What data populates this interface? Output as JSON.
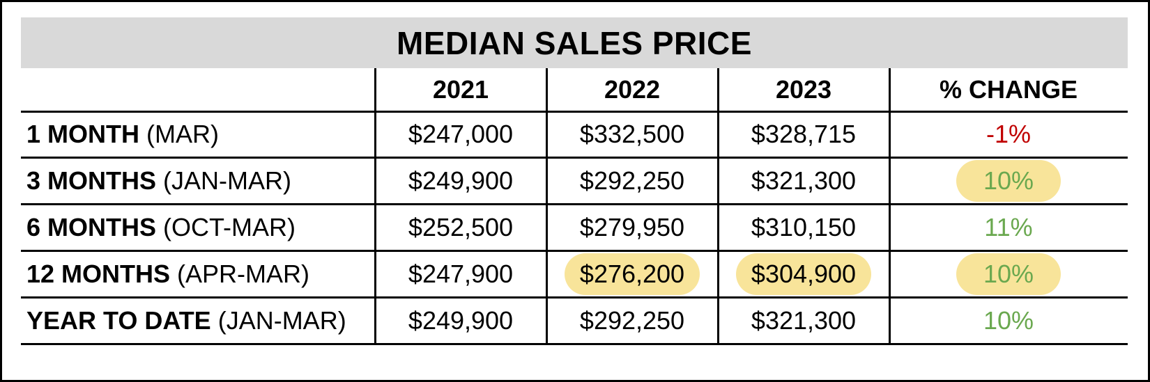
{
  "chart_data": {
    "type": "table",
    "title": "MEDIAN SALES PRICE",
    "columns": [
      "2021",
      "2022",
      "2023",
      "% CHANGE"
    ],
    "rows": [
      {
        "label_bold": "1 MONTH",
        "label_rest": " (MAR)",
        "values": [
          "$247,000",
          "$332,500",
          "$328,715"
        ],
        "change": "-1%"
      },
      {
        "label_bold": "3 MONTHS",
        "label_rest": " (JAN-MAR)",
        "values": [
          "$249,900",
          "$292,250",
          "$321,300"
        ],
        "change": "10%"
      },
      {
        "label_bold": "6 MONTHS",
        "label_rest": " (OCT-MAR)",
        "values": [
          "$252,500",
          "$279,950",
          "$310,150"
        ],
        "change": "11%"
      },
      {
        "label_bold": "12 MONTHS",
        "label_rest": " (APR-MAR)",
        "values": [
          "$247,900",
          "$276,200",
          "$304,900"
        ],
        "change": "10%"
      },
      {
        "label_bold": "YEAR TO DATE",
        "label_rest": " (JAN-MAR)",
        "values": [
          "$249,900",
          "$292,250",
          "$321,300"
        ],
        "change": "10%"
      }
    ],
    "highlighted_cells": [
      {
        "row": 1,
        "col": 3
      },
      {
        "row": 3,
        "col": 1
      },
      {
        "row": 3,
        "col": 2
      },
      {
        "row": 3,
        "col": 3
      }
    ],
    "colors": {
      "title_background": "#d9d9d9",
      "highlight": "#f8e49a",
      "negative": "#c00000",
      "positive": "#6aa84f"
    }
  }
}
